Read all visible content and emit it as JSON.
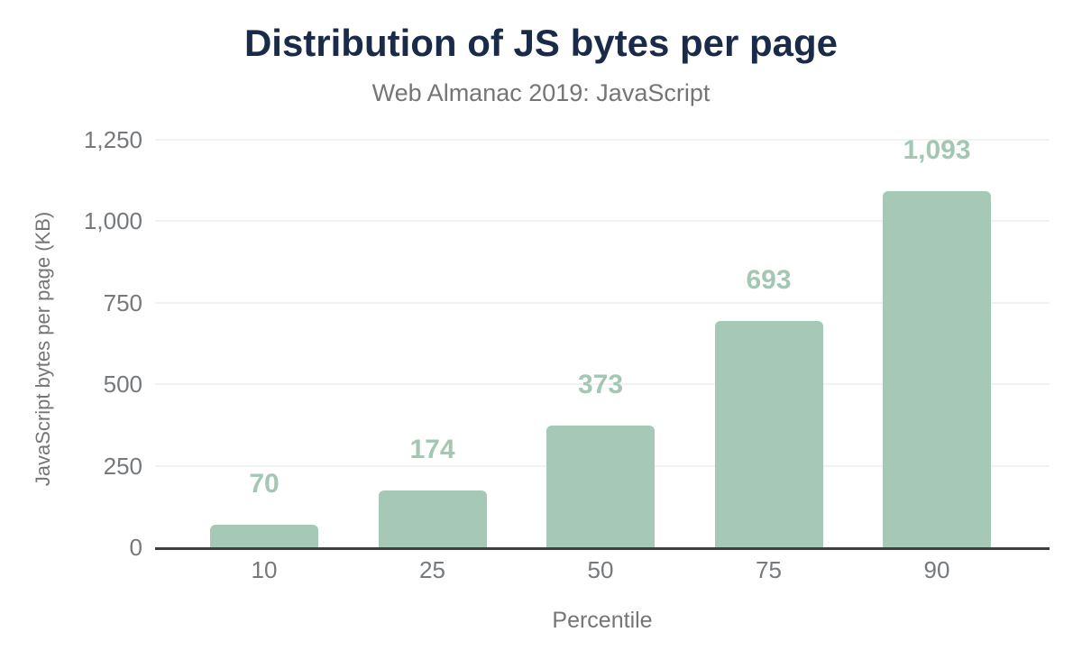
{
  "chart_data": {
    "type": "bar",
    "title": "Distribution of JS bytes per page",
    "subtitle": "Web Almanac 2019: JavaScript",
    "xlabel": "Percentile",
    "ylabel": "JavaScript bytes per page (KB)",
    "categories": [
      "10",
      "25",
      "50",
      "75",
      "90"
    ],
    "values": [
      70,
      174,
      373,
      693,
      1093
    ],
    "value_labels": [
      "70",
      "174",
      "373",
      "693",
      "1,093"
    ],
    "y_ticks": [
      0,
      250,
      500,
      750,
      1000,
      1250
    ],
    "y_tick_labels": [
      "0",
      "250",
      "500",
      "750",
      "1,000",
      "1,250"
    ],
    "ylim": [
      0,
      1250
    ],
    "grid": "horizontal",
    "legend": "none",
    "colors": {
      "bar": "#a6c8b6",
      "data_label": "#a4c7b4",
      "title": "#1a2b49",
      "subtitle": "#757575",
      "axis_title": "#757575",
      "tick_label": "#75797c",
      "gridline": "#f1f2f1",
      "baseline": "#3d4043",
      "background": "#ffffff"
    }
  }
}
